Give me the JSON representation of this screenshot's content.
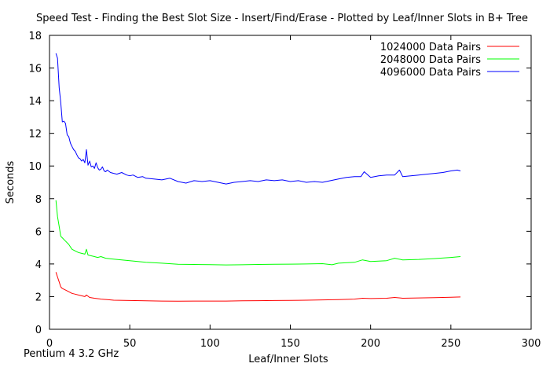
{
  "chart_data": {
    "type": "line",
    "title": "Speed Test - Finding the Best Slot Size - Insert/Find/Erase - Plotted by Leaf/Inner Slots in B+ Tree",
    "xlabel": "Leaf/Inner Slots",
    "ylabel": "Seconds",
    "xlim": [
      0,
      300
    ],
    "ylim": [
      0,
      18
    ],
    "xticks": [
      0,
      50,
      100,
      150,
      200,
      250,
      300
    ],
    "yticks": [
      0,
      2,
      4,
      6,
      8,
      10,
      12,
      14,
      16,
      18
    ],
    "legend_position": "top-right",
    "annotation": "Pentium 4 3.2 GHz",
    "series": [
      {
        "name": "1024000 Data Pairs",
        "color": "#ff0000",
        "x": [
          4,
          5,
          6,
          7,
          8,
          10,
          12,
          14,
          16,
          18,
          20,
          22,
          23,
          25,
          28,
          32,
          36,
          40,
          50,
          60,
          70,
          80,
          90,
          100,
          110,
          120,
          130,
          140,
          150,
          160,
          170,
          180,
          190,
          195,
          200,
          210,
          215,
          220,
          230,
          240,
          250,
          256
        ],
        "values": [
          3.5,
          3.2,
          2.9,
          2.6,
          2.5,
          2.4,
          2.3,
          2.2,
          2.15,
          2.1,
          2.05,
          2.0,
          2.1,
          1.95,
          1.9,
          1.85,
          1.82,
          1.78,
          1.76,
          1.74,
          1.73,
          1.72,
          1.73,
          1.73,
          1.73,
          1.74,
          1.75,
          1.76,
          1.77,
          1.78,
          1.8,
          1.82,
          1.85,
          1.9,
          1.88,
          1.9,
          1.95,
          1.9,
          1.92,
          1.94,
          1.96,
          1.98
        ]
      },
      {
        "name": "2048000 Data Pairs",
        "color": "#00ff00",
        "x": [
          4,
          5,
          6,
          7,
          8,
          10,
          12,
          14,
          16,
          18,
          20,
          22,
          23,
          24,
          26,
          28,
          30,
          32,
          35,
          40,
          45,
          50,
          55,
          60,
          70,
          80,
          90,
          100,
          110,
          120,
          130,
          140,
          150,
          160,
          170,
          176,
          180,
          190,
          195,
          200,
          210,
          215,
          220,
          230,
          240,
          250,
          256
        ],
        "values": [
          7.9,
          6.9,
          6.3,
          5.7,
          5.6,
          5.4,
          5.2,
          4.9,
          4.8,
          4.7,
          4.65,
          4.6,
          4.9,
          4.55,
          4.5,
          4.45,
          4.4,
          4.45,
          4.35,
          4.3,
          4.25,
          4.2,
          4.15,
          4.1,
          4.05,
          3.98,
          3.97,
          3.96,
          3.94,
          3.95,
          3.97,
          3.98,
          3.99,
          4.0,
          4.02,
          3.95,
          4.05,
          4.1,
          4.25,
          4.15,
          4.2,
          4.35,
          4.25,
          4.28,
          4.33,
          4.4,
          4.45
        ]
      },
      {
        "name": "4096000 Data Pairs",
        "color": "#0000ff",
        "x": [
          4,
          5,
          6,
          7,
          8,
          9,
          10,
          11,
          12,
          13,
          14,
          15,
          16,
          17,
          18,
          19,
          20,
          21,
          22,
          23,
          24,
          25,
          26,
          27,
          28,
          29,
          30,
          31,
          32,
          33,
          34,
          35,
          36,
          38,
          40,
          42,
          45,
          48,
          50,
          52,
          55,
          58,
          60,
          65,
          70,
          75,
          80,
          85,
          90,
          95,
          100,
          105,
          110,
          115,
          120,
          125,
          130,
          135,
          140,
          145,
          150,
          155,
          160,
          165,
          170,
          175,
          180,
          185,
          190,
          194,
          196,
          200,
          205,
          210,
          215,
          218,
          220,
          225,
          230,
          235,
          240,
          245,
          250,
          254,
          256
        ],
        "values": [
          16.9,
          16.6,
          14.8,
          13.9,
          12.7,
          12.75,
          12.6,
          11.9,
          11.8,
          11.4,
          11.2,
          11.0,
          10.9,
          10.7,
          10.5,
          10.45,
          10.3,
          10.4,
          10.2,
          11.0,
          10.05,
          10.3,
          9.95,
          10.0,
          9.85,
          10.2,
          9.9,
          9.75,
          9.8,
          9.95,
          9.7,
          9.65,
          9.75,
          9.6,
          9.55,
          9.5,
          9.6,
          9.45,
          9.4,
          9.45,
          9.3,
          9.35,
          9.25,
          9.2,
          9.15,
          9.25,
          9.05,
          8.95,
          9.1,
          9.05,
          9.1,
          9.0,
          8.9,
          9.0,
          9.05,
          9.1,
          9.05,
          9.15,
          9.1,
          9.15,
          9.05,
          9.1,
          9.0,
          9.05,
          9.0,
          9.1,
          9.2,
          9.3,
          9.35,
          9.35,
          9.65,
          9.3,
          9.4,
          9.45,
          9.45,
          9.75,
          9.35,
          9.4,
          9.45,
          9.5,
          9.55,
          9.6,
          9.7,
          9.75,
          9.7
        ]
      }
    ]
  }
}
